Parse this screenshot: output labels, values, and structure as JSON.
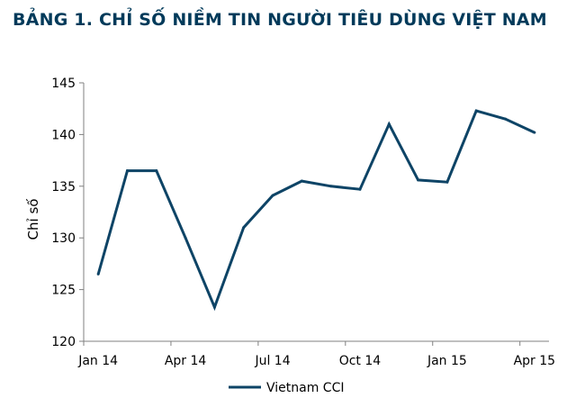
{
  "header": {
    "title": "BẢNG 1. CHỈ SỐ NIỀM TIN NGƯỜI TIÊU DÙNG VIỆT NAM"
  },
  "colors": {
    "series": "#0e4466",
    "axis": "#808080",
    "title": "#003a5a"
  },
  "chart_data": {
    "type": "line",
    "title": "BẢNG 1. CHỈ SỐ NIỀM TIN NGƯỜI TIÊU DÙNG VIỆT NAM",
    "xlabel": "",
    "ylabel": "Chỉ số",
    "ylim": [
      120,
      145
    ],
    "yticks": [
      120,
      125,
      130,
      135,
      140,
      145
    ],
    "x": [
      "Jan 14",
      "Feb 14",
      "Mar 14",
      "Apr 14",
      "May 14",
      "Jun 14",
      "Jul 14",
      "Aug 14",
      "Sep 14",
      "Oct 14",
      "Nov 14",
      "Dec 14",
      "Jan 15",
      "Feb 15",
      "Mar 15",
      "Apr 15"
    ],
    "xtick_labels": [
      "Jan 14",
      "Apr 14",
      "Jul 14",
      "Oct 14",
      "Jan 15",
      "Apr 15"
    ],
    "series": [
      {
        "name": "Vietnam CCI",
        "values": [
          126.5,
          136.5,
          136.5,
          130.0,
          123.3,
          131.0,
          134.1,
          135.5,
          135.0,
          134.7,
          141.0,
          135.6,
          135.4,
          142.3,
          141.5,
          140.2
        ]
      }
    ],
    "grid": false,
    "legend": "bottom-center"
  }
}
